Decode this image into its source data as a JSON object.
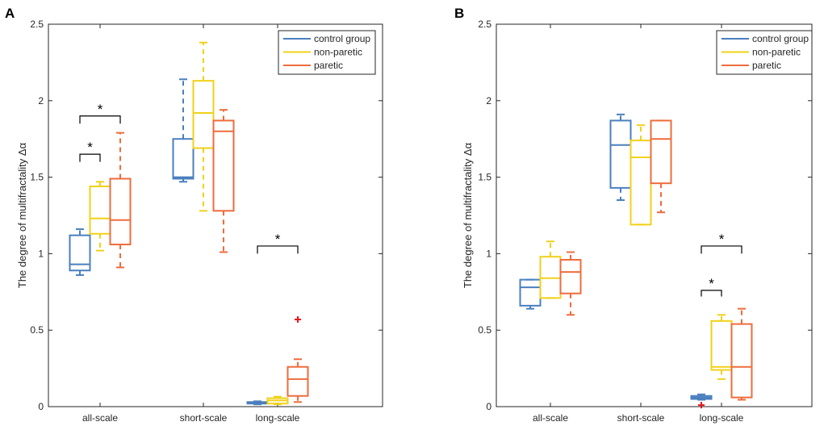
{
  "colors": {
    "control group": "#4a7fbf",
    "non-paretic": "#f0d11a",
    "paretic": "#ee6c3c",
    "outlier": "#e8161b",
    "axis": "#262626",
    "bracket": "#000000"
  },
  "chart_data": [
    {
      "type": "box",
      "panel_label": "A",
      "ylabel": "The degree of multifractality Δα",
      "ylim": [
        0,
        2.5
      ],
      "yticks": [
        0,
        0.5,
        1,
        1.5,
        2,
        2.5
      ],
      "ytick_labels": [
        "0",
        "0.5",
        "1",
        "1.5",
        "2",
        "2.5"
      ],
      "categories": [
        "all-scale",
        "short-scale",
        "long-scale"
      ],
      "legend": {
        "entries": [
          "control group",
          "non-paretic",
          "paretic"
        ],
        "position": "top-right"
      },
      "series": [
        {
          "name": "control group",
          "boxes": [
            {
              "q1": 0.89,
              "median": 0.93,
              "q3": 1.12,
              "whisker_low": 0.86,
              "whisker_high": 1.16,
              "outliers": []
            },
            {
              "q1": 1.49,
              "median": 1.5,
              "q3": 1.75,
              "whisker_low": 1.47,
              "whisker_high": 2.14,
              "outliers": []
            },
            {
              "q1": 0.02,
              "median": 0.025,
              "q3": 0.03,
              "whisker_low": 0.015,
              "whisker_high": 0.035,
              "outliers": []
            }
          ]
        },
        {
          "name": "non-paretic",
          "boxes": [
            {
              "q1": 1.13,
              "median": 1.23,
              "q3": 1.44,
              "whisker_low": 1.02,
              "whisker_high": 1.47,
              "outliers": []
            },
            {
              "q1": 1.69,
              "median": 1.92,
              "q3": 2.13,
              "whisker_low": 1.28,
              "whisker_high": 2.38,
              "outliers": []
            },
            {
              "q1": 0.02,
              "median": 0.04,
              "q3": 0.055,
              "whisker_low": 0.015,
              "whisker_high": 0.065,
              "outliers": []
            }
          ]
        },
        {
          "name": "paretic",
          "boxes": [
            {
              "q1": 1.06,
              "median": 1.22,
              "q3": 1.49,
              "whisker_low": 0.91,
              "whisker_high": 1.79,
              "outliers": []
            },
            {
              "q1": 1.28,
              "median": 1.8,
              "q3": 1.87,
              "whisker_low": 1.01,
              "whisker_high": 1.94,
              "outliers": []
            },
            {
              "q1": 0.07,
              "median": 0.18,
              "q3": 0.26,
              "whisker_low": 0.03,
              "whisker_high": 0.31,
              "outliers": [
                0.57
              ]
            }
          ]
        }
      ],
      "significance": [
        {
          "label": "*",
          "from": {
            "category": 0,
            "series": 0
          },
          "to": {
            "category": 0,
            "series": 1
          },
          "y": 1.65,
          "tick_down": 0.05
        },
        {
          "label": "*",
          "from": {
            "category": 0,
            "series": 0
          },
          "to": {
            "category": 0,
            "series": 2
          },
          "y": 1.9,
          "tick_down": 0.05
        },
        {
          "label": "*",
          "from": {
            "category": 2,
            "series": 0
          },
          "to": {
            "category": 2,
            "series": 2
          },
          "y": 1.05,
          "tick_down": 0.05
        }
      ]
    },
    {
      "type": "box",
      "panel_label": "B",
      "ylabel": "The degree of multifractality Δα",
      "ylim": [
        0,
        2.5
      ],
      "yticks": [
        0,
        0.5,
        1,
        1.5,
        2,
        2.5
      ],
      "ytick_labels": [
        "0",
        "0.5",
        "1",
        "1.5",
        "2",
        "2.5"
      ],
      "categories": [
        "all-scale",
        "short-scale",
        "long-scale"
      ],
      "legend": {
        "entries": [
          "control group",
          "non-paretic",
          "paretic"
        ],
        "position": "top-right"
      },
      "series": [
        {
          "name": "control group",
          "boxes": [
            {
              "q1": 0.66,
              "median": 0.78,
              "q3": 0.83,
              "whisker_low": 0.64,
              "whisker_high": 0.83,
              "outliers": []
            },
            {
              "q1": 1.43,
              "median": 1.71,
              "q3": 1.87,
              "whisker_low": 1.35,
              "whisker_high": 1.91,
              "outliers": []
            },
            {
              "q1": 0.05,
              "median": 0.06,
              "q3": 0.07,
              "whisker_low": 0.045,
              "whisker_high": 0.08,
              "outliers": [
                0.01
              ]
            }
          ]
        },
        {
          "name": "non-paretic",
          "boxes": [
            {
              "q1": 0.71,
              "median": 0.84,
              "q3": 0.98,
              "whisker_low": 0.71,
              "whisker_high": 1.08,
              "outliers": []
            },
            {
              "q1": 1.19,
              "median": 1.63,
              "q3": 1.74,
              "whisker_low": 1.19,
              "whisker_high": 1.84,
              "outliers": []
            },
            {
              "q1": 0.24,
              "median": 0.26,
              "q3": 0.56,
              "whisker_low": 0.18,
              "whisker_high": 0.6,
              "outliers": []
            }
          ]
        },
        {
          "name": "paretic",
          "boxes": [
            {
              "q1": 0.74,
              "median": 0.88,
              "q3": 0.96,
              "whisker_low": 0.6,
              "whisker_high": 1.01,
              "outliers": []
            },
            {
              "q1": 1.46,
              "median": 1.75,
              "q3": 1.87,
              "whisker_low": 1.27,
              "whisker_high": 1.87,
              "outliers": []
            },
            {
              "q1": 0.06,
              "median": 0.26,
              "q3": 0.54,
              "whisker_low": 0.045,
              "whisker_high": 0.64,
              "outliers": []
            }
          ]
        }
      ],
      "significance": [
        {
          "label": "*",
          "from": {
            "category": 2,
            "series": 0
          },
          "to": {
            "category": 2,
            "series": 1
          },
          "y": 0.76,
          "tick_down": 0.04
        },
        {
          "label": "*",
          "from": {
            "category": 2,
            "series": 0
          },
          "to": {
            "category": 2,
            "series": 2
          },
          "y": 1.05,
          "tick_down": 0.05
        }
      ]
    }
  ]
}
